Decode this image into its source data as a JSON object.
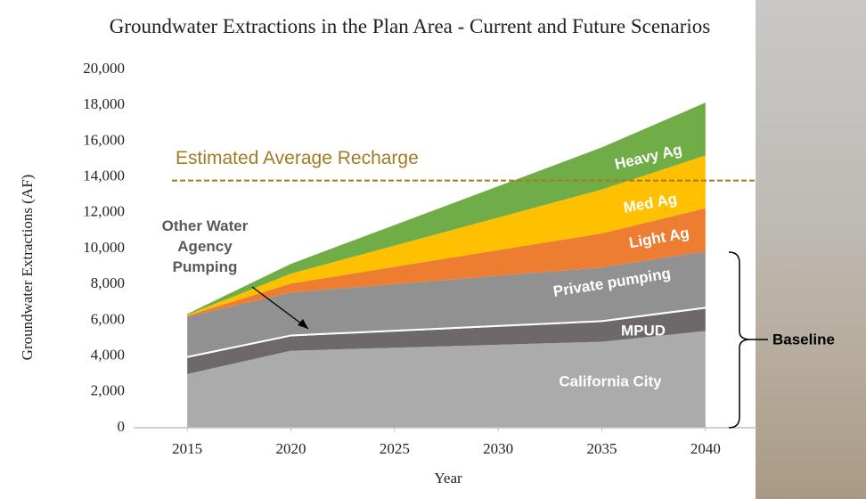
{
  "chart_data": {
    "type": "stacked-area",
    "title": "Groundwater Extractions in the Plan Area - Current and Future Scenarios",
    "x_label": "Year",
    "y_label": "Groundwater Extractions (AF)",
    "x": [
      2015,
      2020,
      2035,
      2040
    ],
    "series": [
      {
        "name": "California City",
        "color": "#ababab",
        "values": [
          3000,
          4300,
          4800,
          5400
        ]
      },
      {
        "name": "MPUD",
        "color": "#6e6868",
        "values": [
          900,
          800,
          1100,
          1250
        ]
      },
      {
        "name": "Other Water Agency Pumping",
        "color": "#ffffff",
        "values": [
          100,
          100,
          100,
          100
        ]
      },
      {
        "name": "Private pumping",
        "color": "#919191",
        "values": [
          2200,
          2350,
          2950,
          3100
        ]
      },
      {
        "name": "Light Ag",
        "color": "#ed7d31",
        "values": [
          50,
          500,
          1900,
          2400
        ]
      },
      {
        "name": "Med Ag",
        "color": "#ffc000",
        "values": [
          50,
          550,
          2450,
          2950
        ]
      },
      {
        "name": "Heavy Ag",
        "color": "#70ad47",
        "values": [
          50,
          550,
          2350,
          2950
        ]
      }
    ],
    "reference_line": {
      "label": "Estimated Average Recharge",
      "value": 13800,
      "color": "#a07c22"
    },
    "bracket_label": "Baseline",
    "xlim": [
      2012.5,
      2042.5
    ],
    "xticks": [
      2015,
      2020,
      2025,
      2030,
      2035,
      2040
    ],
    "ylim": [
      0,
      20000
    ],
    "yticks": [
      {
        "value": 0,
        "label": "0"
      },
      {
        "value": 2000,
        "label": "2,000"
      },
      {
        "value": 4000,
        "label": "4,000"
      },
      {
        "value": 6000,
        "label": "6,000"
      },
      {
        "value": 8000,
        "label": "8,000"
      },
      {
        "value": 10000,
        "label": "10,000"
      },
      {
        "value": 12000,
        "label": "12,000"
      },
      {
        "value": 14000,
        "label": "14,000"
      },
      {
        "value": 16000,
        "label": "16,000"
      },
      {
        "value": 18000,
        "label": "18,000"
      },
      {
        "value": 20000,
        "label": "20,000"
      }
    ],
    "grid": false
  }
}
